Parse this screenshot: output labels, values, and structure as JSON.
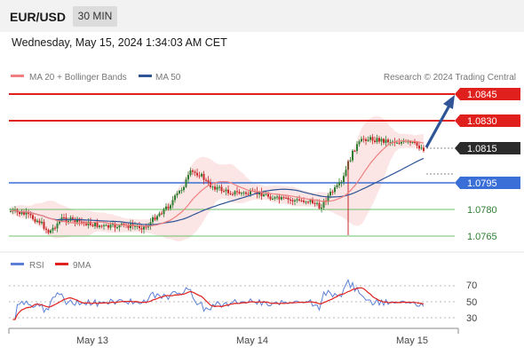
{
  "header": {
    "symbol": "EUR/USD",
    "timeframe": "30 MIN"
  },
  "timestamp": "Wednesday, May 15, 2024 1:34:03 AM CET",
  "legend": {
    "ma20": "MA 20 + Bollinger Bands",
    "ma50": "MA 50",
    "credit": "Research © 2024 Trading Central"
  },
  "levels": [
    {
      "label": "1.0845",
      "style": "resistance"
    },
    {
      "label": "1.0830",
      "style": "resistance"
    },
    {
      "label": "1.0815",
      "style": "current"
    },
    {
      "label": "1.0795",
      "style": "pivot"
    },
    {
      "label": "1.0780",
      "style": "support"
    },
    {
      "label": "1.0765",
      "style": "support"
    }
  ],
  "rsi_legend": {
    "rsi": "RSI",
    "ma": "9MA"
  },
  "rsi_axis": [
    "70",
    "50",
    "30"
  ],
  "x_axis": [
    "May 13",
    "May 14",
    "May 15"
  ],
  "colors": {
    "resistance": "#e0201c",
    "pivot": "#3a6fd8",
    "support": "#6cc06c",
    "current": "#2b2b2b",
    "bullish": "#2e7d32",
    "bearish": "#c62828",
    "ma20": "#f08080",
    "ma50": "#2f5597",
    "rsi": "#5b7fd6",
    "rsi_ma": "#e0201c"
  }
}
